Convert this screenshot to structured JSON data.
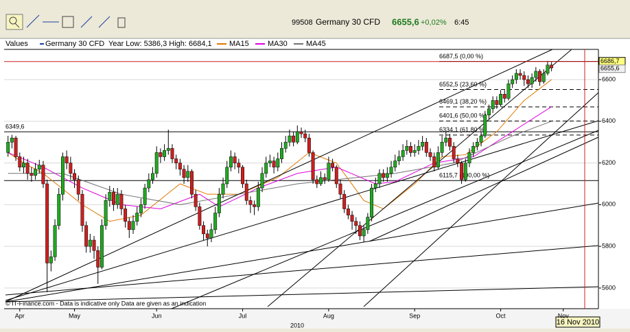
{
  "header": {
    "code": "99508",
    "name": "Germany 30 CFD",
    "price": "6655,6",
    "change": "+0,02%",
    "time": "6:45"
  },
  "chart_data": {
    "type": "candlestick",
    "legend": {
      "label": "Values",
      "series_name": "Germany 30 CFD",
      "range_text": "Year Low: 5386,3 High: 6684,1"
    },
    "up_color": "#22a822",
    "down_color": "#cc1f1f",
    "xlim": [
      0,
      152
    ],
    "xticks": [
      {
        "value": 4,
        "label": "Apr"
      },
      {
        "value": 18,
        "label": "May"
      },
      {
        "value": 39,
        "label": "Jun"
      },
      {
        "value": 61,
        "label": "Jul"
      },
      {
        "value": 83,
        "label": "Aug"
      },
      {
        "value": 105,
        "label": "Sep"
      },
      {
        "value": 127,
        "label": "Oct"
      },
      {
        "value": 143,
        "label": "Nov"
      }
    ],
    "year_label": "2010",
    "ylim": [
      5501,
      6745
    ],
    "yticks": [
      5600,
      5800,
      6000,
      6200,
      6400,
      6600
    ],
    "grid": true,
    "candles": [
      [
        6250,
        6330,
        6230,
        6300
      ],
      [
        6300,
        6335,
        6270,
        6320
      ],
      [
        6320,
        6330,
        6210,
        6230
      ],
      [
        6230,
        6250,
        6160,
        6180
      ],
      [
        6180,
        6230,
        6150,
        6200
      ],
      [
        6200,
        6220,
        6120,
        6150
      ],
      [
        6150,
        6180,
        6110,
        6140
      ],
      [
        6140,
        6200,
        6120,
        6170
      ],
      [
        6170,
        6215,
        6150,
        6190
      ],
      [
        6190,
        6210,
        6080,
        6100
      ],
      [
        6100,
        6120,
        5580,
        5720
      ],
      [
        5720,
        5780,
        5680,
        5750
      ],
      [
        5750,
        5930,
        5730,
        5900
      ],
      [
        5900,
        6080,
        5880,
        6050
      ],
      [
        6050,
        6250,
        6020,
        6230
      ],
      [
        6230,
        6260,
        6170,
        6200
      ],
      [
        6200,
        6230,
        6120,
        6150
      ],
      [
        6150,
        6170,
        6080,
        6120
      ],
      [
        6120,
        6140,
        6020,
        6050
      ],
      [
        6050,
        6070,
        5870,
        5900
      ],
      [
        5900,
        5920,
        5770,
        5800
      ],
      [
        5800,
        5860,
        5770,
        5830
      ],
      [
        5830,
        5850,
        5740,
        5780
      ],
      [
        5780,
        5800,
        5620,
        5700
      ],
      [
        5700,
        5930,
        5690,
        5900
      ],
      [
        5900,
        6050,
        5880,
        6020
      ],
      [
        6020,
        6090,
        5990,
        6060
      ],
      [
        6060,
        6080,
        5970,
        6000
      ],
      [
        6000,
        6080,
        5980,
        6050
      ],
      [
        6050,
        6070,
        5950,
        5980
      ],
      [
        5980,
        6000,
        5890,
        5920
      ],
      [
        5920,
        5940,
        5840,
        5880
      ],
      [
        5880,
        5950,
        5860,
        5920
      ],
      [
        5920,
        5990,
        5900,
        5960
      ],
      [
        5960,
        6030,
        5940,
        6000
      ],
      [
        6000,
        6100,
        5980,
        6080
      ],
      [
        6080,
        6150,
        6060,
        6120
      ],
      [
        6120,
        6180,
        6100,
        6150
      ],
      [
        6150,
        6280,
        6130,
        6250
      ],
      [
        6250,
        6270,
        6200,
        6230
      ],
      [
        6230,
        6290,
        6210,
        6260
      ],
      [
        6260,
        6360,
        6240,
        6270
      ],
      [
        6270,
        6290,
        6200,
        6220
      ],
      [
        6220,
        6240,
        6170,
        6200
      ],
      [
        6200,
        6220,
        6140,
        6170
      ],
      [
        6170,
        6190,
        6100,
        6130
      ],
      [
        6130,
        6190,
        6110,
        6160
      ],
      [
        6160,
        6170,
        6030,
        6050
      ],
      [
        6050,
        6070,
        5970,
        5990
      ],
      [
        5990,
        6010,
        5880,
        5900
      ],
      [
        5900,
        5920,
        5830,
        5860
      ],
      [
        5860,
        5880,
        5800,
        5840
      ],
      [
        5840,
        5910,
        5820,
        5880
      ],
      [
        5880,
        5990,
        5860,
        5960
      ],
      [
        5960,
        6080,
        5940,
        6050
      ],
      [
        6050,
        6130,
        6030,
        6100
      ],
      [
        6100,
        6210,
        6080,
        6180
      ],
      [
        6180,
        6260,
        6160,
        6230
      ],
      [
        6230,
        6250,
        6170,
        6200
      ],
      [
        6200,
        6220,
        6150,
        6180
      ],
      [
        6180,
        6190,
        6080,
        6100
      ],
      [
        6100,
        6120,
        6000,
        6020
      ],
      [
        6020,
        6040,
        5960,
        6000
      ],
      [
        6000,
        6020,
        5950,
        5990
      ],
      [
        5990,
        6110,
        5970,
        6080
      ],
      [
        6080,
        6180,
        6060,
        6150
      ],
      [
        6150,
        6230,
        6130,
        6200
      ],
      [
        6200,
        6240,
        6180,
        6210
      ],
      [
        6210,
        6230,
        6150,
        6180
      ],
      [
        6180,
        6250,
        6160,
        6220
      ],
      [
        6220,
        6300,
        6200,
        6270
      ],
      [
        6270,
        6330,
        6250,
        6300
      ],
      [
        6300,
        6360,
        6280,
        6330
      ],
      [
        6330,
        6350,
        6280,
        6300
      ],
      [
        6300,
        6380,
        6290,
        6350
      ],
      [
        6350,
        6370,
        6320,
        6340
      ],
      [
        6340,
        6360,
        6300,
        6320
      ],
      [
        6320,
        6340,
        6230,
        6250
      ],
      [
        6250,
        6260,
        6100,
        6120
      ],
      [
        6120,
        6140,
        6080,
        6100
      ],
      [
        6100,
        6160,
        6090,
        6130
      ],
      [
        6130,
        6150,
        6100,
        6120
      ],
      [
        6120,
        6230,
        6110,
        6200
      ],
      [
        6200,
        6220,
        6160,
        6180
      ],
      [
        6180,
        6190,
        6080,
        6100
      ],
      [
        6100,
        6120,
        6030,
        6050
      ],
      [
        6050,
        6070,
        5960,
        5980
      ],
      [
        5980,
        6000,
        5930,
        5950
      ],
      [
        5950,
        5970,
        5880,
        5920
      ],
      [
        5920,
        5940,
        5860,
        5900
      ],
      [
        5900,
        5920,
        5830,
        5850
      ],
      [
        5850,
        5900,
        5820,
        5880
      ],
      [
        5880,
        5960,
        5860,
        5940
      ],
      [
        5940,
        6100,
        5920,
        6080
      ],
      [
        6080,
        6130,
        6060,
        6100
      ],
      [
        6100,
        6170,
        6080,
        6150
      ],
      [
        6150,
        6170,
        6110,
        6130
      ],
      [
        6130,
        6180,
        6110,
        6150
      ],
      [
        6150,
        6210,
        6130,
        6180
      ],
      [
        6180,
        6240,
        6160,
        6210
      ],
      [
        6210,
        6260,
        6190,
        6230
      ],
      [
        6230,
        6290,
        6210,
        6260
      ],
      [
        6260,
        6310,
        6240,
        6280
      ],
      [
        6280,
        6300,
        6230,
        6250
      ],
      [
        6250,
        6290,
        6230,
        6260
      ],
      [
        6260,
        6310,
        6240,
        6280
      ],
      [
        6280,
        6330,
        6260,
        6300
      ],
      [
        6300,
        6320,
        6230,
        6250
      ],
      [
        6250,
        6270,
        6210,
        6230
      ],
      [
        6230,
        6250,
        6160,
        6180
      ],
      [
        6180,
        6280,
        6170,
        6250
      ],
      [
        6250,
        6330,
        6230,
        6300
      ],
      [
        6300,
        6350,
        6280,
        6320
      ],
      [
        6320,
        6340,
        6260,
        6280
      ],
      [
        6280,
        6300,
        6200,
        6220
      ],
      [
        6220,
        6240,
        6180,
        6200
      ],
      [
        6200,
        6210,
        6100,
        6120
      ],
      [
        6120,
        6220,
        6110,
        6200
      ],
      [
        6200,
        6270,
        6180,
        6250
      ],
      [
        6250,
        6300,
        6230,
        6280
      ],
      [
        6280,
        6320,
        6260,
        6300
      ],
      [
        6300,
        6350,
        6280,
        6330
      ],
      [
        6330,
        6450,
        6320,
        6430
      ],
      [
        6430,
        6480,
        6410,
        6460
      ],
      [
        6460,
        6520,
        6440,
        6500
      ],
      [
        6500,
        6520,
        6460,
        6480
      ],
      [
        6480,
        6550,
        6470,
        6530
      ],
      [
        6530,
        6550,
        6490,
        6510
      ],
      [
        6510,
        6600,
        6500,
        6580
      ],
      [
        6580,
        6620,
        6560,
        6600
      ],
      [
        6600,
        6650,
        6580,
        6630
      ],
      [
        6630,
        6650,
        6600,
        6620
      ],
      [
        6620,
        6640,
        6570,
        6600
      ],
      [
        6600,
        6620,
        6560,
        6580
      ],
      [
        6580,
        6630,
        6560,
        6610
      ],
      [
        6610,
        6660,
        6590,
        6640
      ],
      [
        6640,
        6650,
        6570,
        6590
      ],
      [
        6590,
        6650,
        6580,
        6630
      ],
      [
        6630,
        6690,
        6620,
        6670
      ],
      [
        6670,
        6684,
        6640,
        6656
      ]
    ],
    "series": [
      {
        "name": "MA15",
        "color": "#e07800",
        "x": [
          1,
          5,
          10,
          20,
          27,
          35,
          45,
          52,
          60,
          70,
          78,
          85,
          92,
          97,
          105,
          112,
          118,
          126,
          133,
          140
        ],
        "values": [
          6250,
          6200,
          6150,
          6000,
          5920,
          5950,
          6100,
          6050,
          6050,
          6130,
          6250,
          6200,
          6020,
          5980,
          6100,
          6230,
          6240,
          6350,
          6500,
          6600
        ]
      },
      {
        "name": "MA30",
        "color": "#e000e0",
        "x": [
          1,
          10,
          20,
          30,
          40,
          50,
          55,
          65,
          75,
          85,
          95,
          100,
          110,
          120,
          130,
          140
        ],
        "values": [
          6250,
          6180,
          6080,
          6000,
          5980,
          6050,
          5990,
          6080,
          6150,
          6180,
          6100,
          6110,
          6200,
          6230,
          6350,
          6470
        ]
      },
      {
        "name": "MA45",
        "color": "#707070",
        "x": [
          1,
          15,
          30,
          45,
          60,
          75,
          90,
          100,
          115,
          130,
          140
        ],
        "values": [
          6150,
          6150,
          6050,
          6000,
          6050,
          6100,
          6130,
          6150,
          6200,
          6330,
          6400
        ]
      }
    ],
    "reference_line": {
      "value": 6349.6,
      "label": "6349,6"
    },
    "last_line": {
      "value": 6686.7,
      "label": "6686,7"
    },
    "last_price_label": "6655,6",
    "fib_levels": [
      {
        "value": 6687.5,
        "label": "6687,5 (0,00 %)"
      },
      {
        "value": 6552.5,
        "label": "6552,5 (23,60 %)"
      },
      {
        "value": 6469.1,
        "label": "6469,1 (38,20 %)"
      },
      {
        "value": 6401.6,
        "label": "6401,6 (50,00 %)"
      },
      {
        "value": 6334.1,
        "label": "6334,1 (61,80 %)"
      },
      {
        "value": 6115.7,
        "label": "6115,7 (100,00 %)"
      }
    ],
    "footer": "© IT-Finance.com - Data is indicative only Data are given as an indication",
    "date_label": "16 Nov 2010"
  }
}
